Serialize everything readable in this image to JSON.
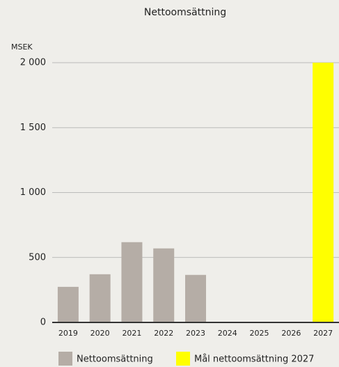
{
  "chart_data": {
    "type": "bar",
    "title": "Nettoomsättning",
    "y_label": "MSEK",
    "categories": [
      "2019",
      "2020",
      "2021",
      "2022",
      "2023",
      "2024",
      "2025",
      "2026",
      "2027"
    ],
    "series": [
      {
        "name": "Nettoomsättning",
        "color": "#b5ada6",
        "values": [
          274,
          371,
          618,
          570,
          366,
          null,
          null,
          null,
          null
        ]
      },
      {
        "name": "Mål nettoomsättning 2027",
        "color": "#ffff00",
        "values": [
          null,
          null,
          null,
          null,
          null,
          null,
          null,
          null,
          2000
        ]
      }
    ],
    "ylim": [
      0,
      2000
    ],
    "yticks": [
      0,
      500,
      {
        "value": 1000,
        "label": "1 000"
      },
      {
        "value": 1500,
        "label": "1 500"
      },
      {
        "value": 2000,
        "label": "2 000"
      }
    ],
    "grid": true
  }
}
